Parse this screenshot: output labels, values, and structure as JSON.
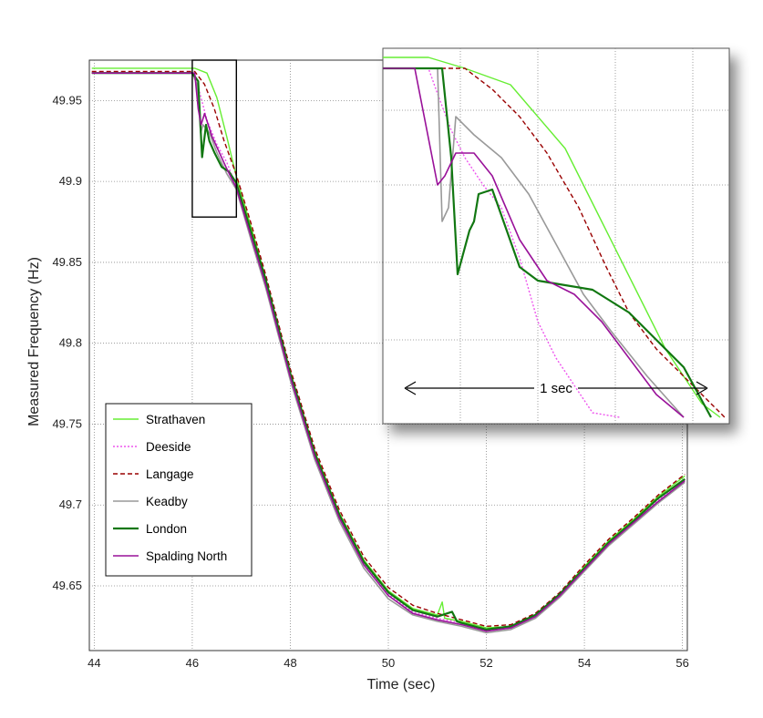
{
  "chart_data": {
    "type": "line",
    "title": "",
    "xlabel": "Time (sec)",
    "ylabel": "Measured Frequency (Hz)",
    "xlim": [
      43.9,
      56.1
    ],
    "ylim": [
      49.61,
      49.975
    ],
    "xticks": [
      44,
      46,
      48,
      50,
      52,
      54,
      56
    ],
    "yticks": [
      49.65,
      49.7,
      49.75,
      49.8,
      49.85,
      49.9,
      49.95
    ],
    "grid": true,
    "legend_position": "bottom-left",
    "series": [
      {
        "name": "Strathaven",
        "color": "#66ee33",
        "dash": "solid",
        "width": 1.4,
        "points": [
          [
            43.95,
            49.97
          ],
          [
            46.05,
            49.97
          ],
          [
            46.3,
            49.967
          ],
          [
            46.5,
            49.952
          ],
          [
            46.7,
            49.928
          ],
          [
            46.9,
            49.903
          ],
          [
            47.2,
            49.872
          ],
          [
            47.5,
            49.84
          ],
          [
            48.0,
            49.782
          ],
          [
            48.5,
            49.733
          ],
          [
            49.0,
            49.695
          ],
          [
            49.5,
            49.666
          ],
          [
            50.0,
            49.647
          ],
          [
            50.5,
            49.636
          ],
          [
            51.0,
            49.632
          ],
          [
            51.1,
            49.64
          ],
          [
            51.15,
            49.63
          ],
          [
            51.5,
            49.628
          ],
          [
            52.0,
            49.624
          ],
          [
            52.5,
            49.625
          ],
          [
            53.0,
            49.632
          ],
          [
            53.5,
            49.645
          ],
          [
            54.0,
            49.662
          ],
          [
            54.5,
            49.678
          ],
          [
            55.0,
            49.691
          ],
          [
            55.5,
            49.705
          ],
          [
            56.05,
            49.718
          ]
        ]
      },
      {
        "name": "Deeside",
        "color": "#ee55ee",
        "dash": "dotted",
        "width": 1.4,
        "points": [
          [
            43.95,
            49.967
          ],
          [
            46.0,
            49.967
          ],
          [
            46.15,
            49.955
          ],
          [
            46.3,
            49.938
          ],
          [
            46.5,
            49.923
          ],
          [
            46.7,
            49.912
          ],
          [
            46.9,
            49.897
          ],
          [
            47.2,
            49.868
          ],
          [
            47.5,
            49.838
          ],
          [
            48.0,
            49.78
          ],
          [
            48.5,
            49.731
          ],
          [
            49.0,
            49.693
          ],
          [
            49.5,
            49.664
          ],
          [
            50.0,
            49.645
          ],
          [
            50.5,
            49.634
          ],
          [
            51.0,
            49.63
          ],
          [
            51.5,
            49.627
          ],
          [
            52.0,
            49.622
          ],
          [
            52.5,
            49.624
          ],
          [
            53.0,
            49.631
          ],
          [
            53.5,
            49.644
          ],
          [
            54.0,
            49.66
          ],
          [
            54.5,
            49.676
          ],
          [
            55.0,
            49.69
          ],
          [
            55.5,
            49.703
          ],
          [
            56.05,
            49.716
          ]
        ]
      },
      {
        "name": "Langage",
        "color": "#990000",
        "dash": "dashed",
        "width": 1.4,
        "points": [
          [
            43.95,
            49.968
          ],
          [
            46.05,
            49.968
          ],
          [
            46.25,
            49.96
          ],
          [
            46.45,
            49.945
          ],
          [
            46.65,
            49.925
          ],
          [
            46.9,
            49.904
          ],
          [
            47.2,
            49.874
          ],
          [
            47.5,
            49.842
          ],
          [
            48.0,
            49.784
          ],
          [
            48.5,
            49.735
          ],
          [
            49.0,
            49.697
          ],
          [
            49.5,
            49.668
          ],
          [
            50.0,
            49.649
          ],
          [
            50.5,
            49.638
          ],
          [
            51.0,
            49.633
          ],
          [
            51.5,
            49.629
          ],
          [
            52.0,
            49.625
          ],
          [
            52.5,
            49.626
          ],
          [
            53.0,
            49.633
          ],
          [
            53.5,
            49.646
          ],
          [
            54.0,
            49.663
          ],
          [
            54.5,
            49.679
          ],
          [
            55.0,
            49.692
          ],
          [
            55.5,
            49.706
          ],
          [
            56.05,
            49.719
          ]
        ]
      },
      {
        "name": "Keadby",
        "color": "#999999",
        "dash": "solid",
        "width": 1.6,
        "points": [
          [
            43.95,
            49.967
          ],
          [
            46.0,
            49.967
          ],
          [
            46.1,
            49.96
          ],
          [
            46.17,
            49.93
          ],
          [
            46.22,
            49.935
          ],
          [
            46.35,
            49.93
          ],
          [
            46.5,
            49.918
          ],
          [
            46.7,
            49.905
          ],
          [
            46.9,
            49.895
          ],
          [
            47.2,
            49.864
          ],
          [
            47.5,
            49.834
          ],
          [
            48.0,
            49.777
          ],
          [
            48.5,
            49.728
          ],
          [
            49.0,
            49.69
          ],
          [
            49.5,
            49.661
          ],
          [
            50.0,
            49.642
          ],
          [
            50.5,
            49.632
          ],
          [
            51.0,
            49.628
          ],
          [
            51.5,
            49.625
          ],
          [
            52.0,
            49.621
          ],
          [
            52.5,
            49.623
          ],
          [
            53.0,
            49.63
          ],
          [
            53.5,
            49.643
          ],
          [
            54.0,
            49.659
          ],
          [
            54.5,
            49.675
          ],
          [
            55.0,
            49.688
          ],
          [
            55.5,
            49.701
          ],
          [
            56.05,
            49.714
          ]
        ]
      },
      {
        "name": "London",
        "color": "#117711",
        "dash": "solid",
        "width": 2.2,
        "points": [
          [
            43.95,
            49.967
          ],
          [
            46.0,
            49.967
          ],
          [
            46.12,
            49.962
          ],
          [
            46.2,
            49.915
          ],
          [
            46.28,
            49.935
          ],
          [
            46.35,
            49.925
          ],
          [
            46.45,
            49.918
          ],
          [
            46.6,
            49.909
          ],
          [
            46.75,
            49.906
          ],
          [
            46.9,
            49.899
          ],
          [
            47.2,
            49.869
          ],
          [
            47.5,
            49.839
          ],
          [
            48.0,
            49.781
          ],
          [
            48.5,
            49.732
          ],
          [
            49.0,
            49.694
          ],
          [
            49.5,
            49.665
          ],
          [
            50.0,
            49.646
          ],
          [
            50.5,
            49.635
          ],
          [
            51.0,
            49.631
          ],
          [
            51.3,
            49.634
          ],
          [
            51.4,
            49.628
          ],
          [
            51.5,
            49.627
          ],
          [
            52.0,
            49.623
          ],
          [
            52.5,
            49.625
          ],
          [
            53.0,
            49.632
          ],
          [
            53.5,
            49.645
          ],
          [
            54.0,
            49.661
          ],
          [
            54.5,
            49.677
          ],
          [
            55.0,
            49.69
          ],
          [
            55.5,
            49.704
          ],
          [
            56.05,
            49.716
          ]
        ]
      },
      {
        "name": "Spalding North",
        "color": "#991199",
        "dash": "solid",
        "width": 1.6,
        "points": [
          [
            43.95,
            49.967
          ],
          [
            46.05,
            49.967
          ],
          [
            46.12,
            49.945
          ],
          [
            46.18,
            49.935
          ],
          [
            46.25,
            49.942
          ],
          [
            46.4,
            49.928
          ],
          [
            46.55,
            49.918
          ],
          [
            46.7,
            49.908
          ],
          [
            46.9,
            49.896
          ],
          [
            47.2,
            49.866
          ],
          [
            47.5,
            49.836
          ],
          [
            48.0,
            49.779
          ],
          [
            48.5,
            49.73
          ],
          [
            49.0,
            49.692
          ],
          [
            49.5,
            49.663
          ],
          [
            50.0,
            49.644
          ],
          [
            50.5,
            49.633
          ],
          [
            51.0,
            49.629
          ],
          [
            51.5,
            49.626
          ],
          [
            52.0,
            49.622
          ],
          [
            52.5,
            49.624
          ],
          [
            53.0,
            49.631
          ],
          [
            53.5,
            49.644
          ],
          [
            54.0,
            49.66
          ],
          [
            54.5,
            49.676
          ],
          [
            55.0,
            49.689
          ],
          [
            55.5,
            49.702
          ],
          [
            56.05,
            49.715
          ]
        ]
      }
    ],
    "zoom_region": {
      "xlim": [
        46.0,
        46.9
      ],
      "ylim": [
        49.878,
        49.975
      ]
    },
    "inset": {
      "span_label": "1 sec",
      "series": [
        {
          "name": "Strathaven",
          "points": [
            [
              0,
              10
            ],
            [
              50,
              10
            ],
            [
              90,
              22
            ],
            [
              140,
              40
            ],
            [
              200,
              110
            ],
            [
              240,
              190
            ],
            [
              280,
              270
            ],
            [
              310,
              330
            ],
            [
              350,
              390
            ],
            [
              370,
              405
            ]
          ]
        },
        {
          "name": "Deeside",
          "points": [
            [
              0,
              22
            ],
            [
              50,
              22
            ],
            [
              60,
              50
            ],
            [
              75,
              90
            ],
            [
              90,
              120
            ],
            [
              110,
              150
            ],
            [
              130,
              175
            ],
            [
              150,
              230
            ],
            [
              170,
              300
            ],
            [
              190,
              340
            ],
            [
              230,
              400
            ],
            [
              260,
              405
            ]
          ]
        },
        {
          "name": "Langage",
          "points": [
            [
              0,
              22
            ],
            [
              90,
              22
            ],
            [
              120,
              45
            ],
            [
              150,
              75
            ],
            [
              180,
              115
            ],
            [
              215,
              175
            ],
            [
              245,
              240
            ],
            [
              270,
              290
            ],
            [
              300,
              330
            ],
            [
              330,
              360
            ],
            [
              355,
              385
            ],
            [
              375,
              405
            ]
          ]
        },
        {
          "name": "Keadby",
          "points": [
            [
              0,
              22
            ],
            [
              60,
              22
            ],
            [
              65,
              190
            ],
            [
              72,
              175
            ],
            [
              80,
              75
            ],
            [
              100,
              95
            ],
            [
              130,
              120
            ],
            [
              160,
              160
            ],
            [
              190,
              215
            ],
            [
              220,
              270
            ],
            [
              250,
              310
            ],
            [
              290,
              360
            ],
            [
              330,
              405
            ]
          ]
        },
        {
          "name": "London",
          "points": [
            [
              0,
              22
            ],
            [
              65,
              22
            ],
            [
              75,
              120
            ],
            [
              82,
              248
            ],
            [
              95,
              200
            ],
            [
              100,
              190
            ],
            [
              105,
              160
            ],
            [
              120,
              155
            ],
            [
              150,
              240
            ],
            [
              170,
              255
            ],
            [
              200,
              260
            ],
            [
              230,
              265
            ],
            [
              270,
              290
            ],
            [
              300,
              320
            ],
            [
              330,
              350
            ],
            [
              360,
              405
            ]
          ]
        },
        {
          "name": "Spalding North",
          "points": [
            [
              0,
              22
            ],
            [
              35,
              22
            ],
            [
              60,
              150
            ],
            [
              68,
              140
            ],
            [
              80,
              115
            ],
            [
              100,
              115
            ],
            [
              120,
              140
            ],
            [
              150,
              210
            ],
            [
              180,
              255
            ],
            [
              210,
              270
            ],
            [
              240,
              300
            ],
            [
              270,
              340
            ],
            [
              300,
              380
            ],
            [
              330,
              405
            ]
          ]
        }
      ]
    }
  }
}
